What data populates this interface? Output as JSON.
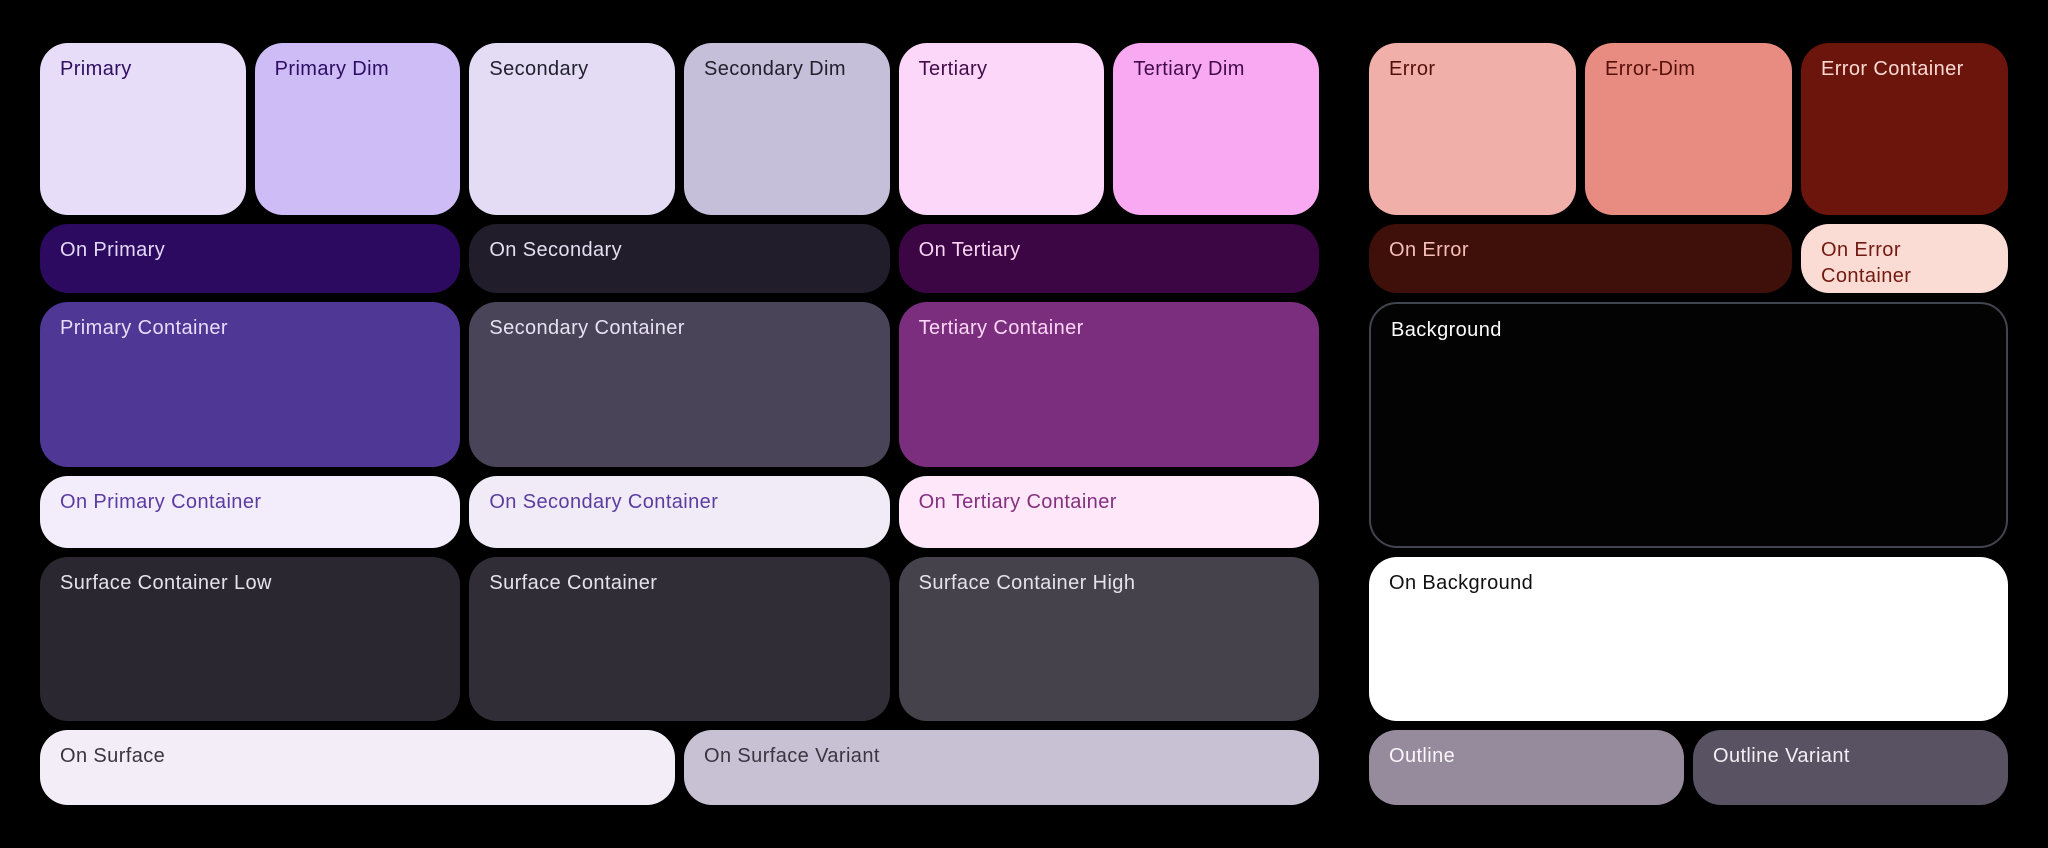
{
  "page": {
    "background": "#000000"
  },
  "swatches": {
    "primary": {
      "label": "Primary",
      "bg": "#E7DDF9",
      "fg": "#2E0D63"
    },
    "primary_dim": {
      "label": "Primary Dim",
      "bg": "#CDBCF6",
      "fg": "#2E0D63"
    },
    "secondary": {
      "label": "Secondary",
      "bg": "#E4DCF4",
      "fg": "#23202E"
    },
    "secondary_dim": {
      "label": "Secondary Dim",
      "bg": "#C6BFD9",
      "fg": "#23202E"
    },
    "tertiary": {
      "label": "Tertiary",
      "bg": "#FDD7F9",
      "fg": "#410C49"
    },
    "tertiary_dim": {
      "label": "Tertiary Dim",
      "bg": "#F8A9F1",
      "fg": "#410C49"
    },
    "on_primary": {
      "label": "On Primary",
      "bg": "#2B0A60",
      "fg": "#E3D9F6"
    },
    "on_secondary": {
      "label": "On Secondary",
      "bg": "#211D2B",
      "fg": "#E4DEF0"
    },
    "on_tertiary": {
      "label": "On Tertiary",
      "bg": "#3C0645",
      "fg": "#F8D5F3"
    },
    "primary_container": {
      "label": "Primary Container",
      "bg": "#4F3795",
      "fg": "#E7DDFA"
    },
    "secondary_container": {
      "label": "Secondary Container",
      "bg": "#4A4458",
      "fg": "#E8E1F1"
    },
    "tertiary_container": {
      "label": "Tertiary Container",
      "bg": "#7B2E7D",
      "fg": "#FBD7F6"
    },
    "on_primary_container": {
      "label": "On Primary Container",
      "bg": "#F3EDFB",
      "fg": "#5A3CA0"
    },
    "on_secondary_container": {
      "label": "On Secondary Container",
      "bg": "#F1EBF8",
      "fg": "#5A3D9E"
    },
    "on_tertiary_container": {
      "label": "On Tertiary Container",
      "bg": "#FDE7F9",
      "fg": "#84307F"
    },
    "surface_container_low": {
      "label": "Surface Container Low",
      "bg": "#2A2731",
      "fg": "#E7E1EC"
    },
    "surface_container": {
      "label": "Surface Container",
      "bg": "#302D37",
      "fg": "#E7E1EC"
    },
    "surface_container_high": {
      "label": "Surface Container High",
      "bg": "#45424C",
      "fg": "#E7E1EC"
    },
    "on_surface": {
      "label": "On Surface",
      "bg": "#F3EDF8",
      "fg": "#393540"
    },
    "on_surface_variant": {
      "label": "On Surface Variant",
      "bg": "#C8C1D3",
      "fg": "#3A3641"
    },
    "error": {
      "label": "Error",
      "bg": "#F0B0A9",
      "fg": "#551109"
    },
    "error_dim": {
      "label": "Error-Dim",
      "bg": "#E88C82",
      "fg": "#551109"
    },
    "error_container": {
      "label": "Error Container",
      "bg": "#6B150C",
      "fg": "#FAD9D3"
    },
    "on_error": {
      "label": "On Error",
      "bg": "#3F0F09",
      "fg": "#F5BFB8"
    },
    "on_error_container": {
      "label": "On Error Container",
      "bg": "#FADCD5",
      "fg": "#731A10"
    },
    "background": {
      "label": "Background",
      "bg": "#030303",
      "fg": "#FCFCFC",
      "border": "#42444E"
    },
    "on_background": {
      "label": "On Background",
      "bg": "#FFFFFF",
      "fg": "#111013"
    },
    "outline": {
      "label": "Outline",
      "bg": "#958B9D",
      "fg": "#FAF6FB"
    },
    "outline_variant": {
      "label": "Outline Variant",
      "bg": "#595263",
      "fg": "#F3EFF5"
    }
  }
}
